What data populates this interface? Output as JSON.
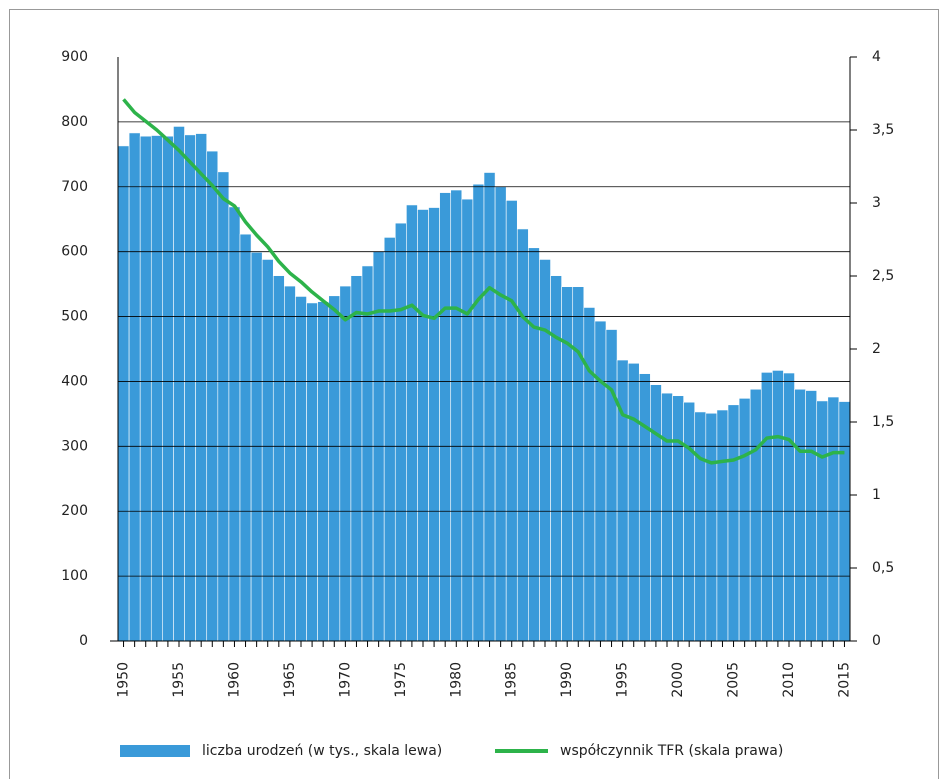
{
  "chart_data": {
    "type": "bar-line",
    "x": [
      1950,
      1951,
      1952,
      1953,
      1954,
      1955,
      1956,
      1957,
      1958,
      1959,
      1960,
      1961,
      1962,
      1963,
      1964,
      1965,
      1966,
      1967,
      1968,
      1969,
      1970,
      1971,
      1972,
      1973,
      1974,
      1975,
      1976,
      1977,
      1978,
      1979,
      1980,
      1981,
      1982,
      1983,
      1984,
      1985,
      1986,
      1987,
      1988,
      1989,
      1990,
      1991,
      1992,
      1993,
      1994,
      1995,
      1996,
      1997,
      1998,
      1999,
      2000,
      2001,
      2002,
      2003,
      2004,
      2005,
      2006,
      2007,
      2008,
      2009,
      2010,
      2011,
      2012,
      2013,
      2014,
      2015
    ],
    "xlim": [
      1949.5,
      2015.5
    ],
    "xticks": [
      1950,
      1955,
      1960,
      1965,
      1970,
      1975,
      1980,
      1985,
      1990,
      1995,
      2000,
      2005,
      2010,
      2015
    ],
    "ylim": [
      0,
      900
    ],
    "yticks": [
      0,
      100,
      200,
      300,
      400,
      500,
      600,
      700,
      800,
      900
    ],
    "y2lim": [
      0,
      4
    ],
    "y2ticks": [
      0,
      {
        "value": 0.5,
        "label": "0,5"
      },
      1,
      {
        "value": 1.5,
        "label": "1,5"
      },
      2,
      {
        "value": 2.5,
        "label": "2,5"
      },
      3,
      {
        "value": 3.5,
        "label": "3,5"
      },
      4
    ],
    "grid": true,
    "legend": "bottom",
    "series": [
      {
        "name": "liczba urodzeń (w tys., skala lewa)",
        "type": "bar",
        "color": "#3a9ad9",
        "values": [
          763,
          783,
          778,
          779,
          778,
          793,
          780,
          782,
          755,
          723,
          669,
          627,
          599,
          588,
          563,
          547,
          531,
          521,
          523,
          532,
          547,
          563,
          578,
          600,
          622,
          644,
          672,
          665,
          668,
          691,
          695,
          681,
          704,
          722,
          700,
          679,
          635,
          606,
          588,
          563,
          546,
          546,
          514,
          493,
          480,
          433,
          428,
          412,
          395,
          382,
          378,
          368,
          353,
          351,
          356,
          364,
          374,
          388,
          414,
          417,
          413,
          388,
          386,
          370,
          376,
          369
        ]
      },
      {
        "name": "współczynnik TFR (skala prawa)",
        "type": "line",
        "axis": "y2",
        "color": "#2db34a",
        "values": [
          3.71,
          3.62,
          3.56,
          3.5,
          3.43,
          3.36,
          3.28,
          3.2,
          3.12,
          3.03,
          2.98,
          2.87,
          2.78,
          2.7,
          2.6,
          2.52,
          2.46,
          2.39,
          2.33,
          2.27,
          2.2,
          2.25,
          2.24,
          2.26,
          2.26,
          2.27,
          2.3,
          2.23,
          2.21,
          2.28,
          2.28,
          2.24,
          2.34,
          2.42,
          2.37,
          2.33,
          2.22,
          2.15,
          2.13,
          2.08,
          2.04,
          1.98,
          1.85,
          1.78,
          1.72,
          1.55,
          1.52,
          1.47,
          1.42,
          1.37,
          1.37,
          1.32,
          1.25,
          1.22,
          1.23,
          1.24,
          1.27,
          1.31,
          1.39,
          1.4,
          1.38,
          1.3,
          1.3,
          1.26,
          1.29,
          1.29
        ]
      }
    ]
  }
}
